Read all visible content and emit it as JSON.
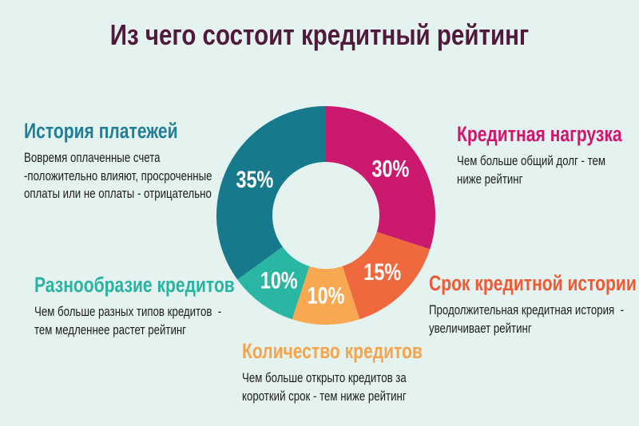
{
  "title": {
    "text": "Из чего состоит кредитный рейтинг",
    "color": "#4f1a3c"
  },
  "background_color": "#e4f2f0",
  "sections": {
    "payment_history": {
      "heading": "История платежей",
      "heading_color": "#1e7f96",
      "body": "Вовремя оплаченные счета\n-положительно влияют, просроченные\nоплаты или не оплаты - отрицательно"
    },
    "credit_load": {
      "heading": "Кредитная нагрузка",
      "heading_color": "#d2146e",
      "body": "Чем больше общий долг - тем\nниже рейтинг"
    },
    "credit_variety": {
      "heading": "Разнообразие кредитов",
      "heading_color": "#2ab3a0",
      "body": "Чем больше разных типов кредитов  -\nтем медленнее растет рейтинг"
    },
    "history_length": {
      "heading": "Срок кредитной истории",
      "heading_color": "#ee5a34",
      "body": "Продолжительная кредитная история  -\nувеличивает рейтинг"
    },
    "credits_count": {
      "heading": "Количество кредитов",
      "heading_color": "#f6a44a",
      "body": "Чем больше открыто кредитов за\nкороткий срок - тем ниже рейтинг"
    }
  },
  "chart_data": {
    "type": "pie",
    "subtype": "donut",
    "title": "Из чего состоит кредитный рейтинг",
    "categories": [
      "Кредитная нагрузка",
      "Срок кредитной истории",
      "Количество кредитов",
      "Разнообразие кредитов",
      "История платежей"
    ],
    "values": [
      30,
      15,
      10,
      10,
      35
    ],
    "labels": [
      "30%",
      "15%",
      "10%",
      "10%",
      "35%"
    ],
    "colors": [
      "#cb1a6e",
      "#f0693e",
      "#f8a850",
      "#29b6a2",
      "#17798c"
    ],
    "start_angle_deg": 0,
    "direction": "clockwise",
    "outer_radius_px": 137,
    "inner_radius_px": 67,
    "label_radius_px": 100,
    "label_color": "#ffffff",
    "legend": "none",
    "grid": false
  }
}
